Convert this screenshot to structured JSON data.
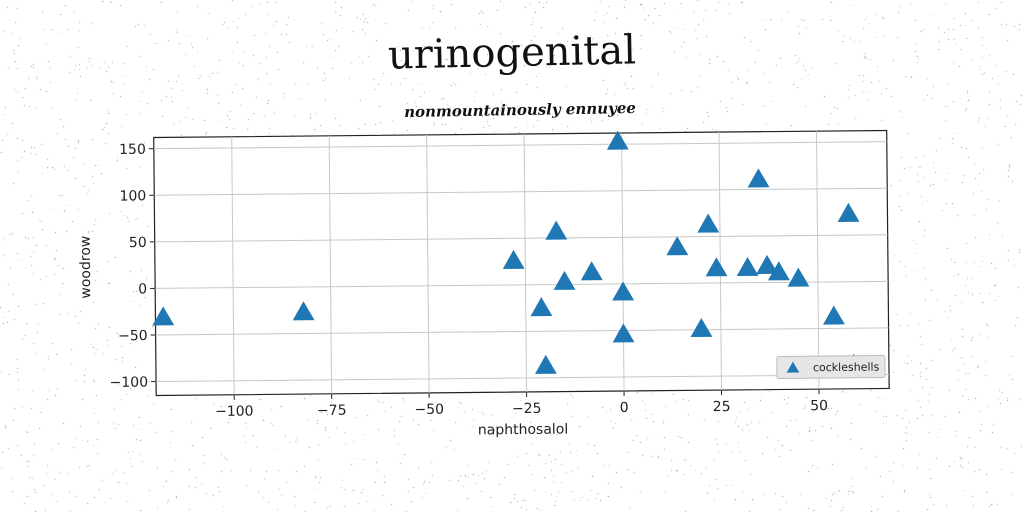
{
  "title": "urinogenital",
  "subtitle": "nonmountainously ennuyee",
  "chart_data": {
    "type": "scatter",
    "xlabel": "naphthosalol",
    "ylabel": "woodrow",
    "xlim": [
      -120,
      68
    ],
    "ylim": [
      -115,
      162
    ],
    "xticks": [
      -100,
      -75,
      -50,
      -25,
      0,
      25,
      50
    ],
    "yticks": [
      -100,
      -50,
      0,
      50,
      100,
      150
    ],
    "xtick_labels": [
      "−100",
      "−75",
      "−50",
      "−25",
      "0",
      "25",
      "50"
    ],
    "ytick_labels": [
      "−100",
      "−50",
      "0",
      "50",
      "100",
      "150"
    ],
    "grid": true,
    "legend_position": "bottom-right",
    "marker": "triangle",
    "color": "#1f77b4",
    "series": [
      {
        "name": "cockleshells",
        "x": [
          -118,
          -82,
          -28,
          -21,
          -17,
          -15,
          -20,
          -8,
          -1,
          0,
          0,
          14,
          20,
          22,
          24,
          32,
          35,
          37,
          40,
          45,
          54,
          58,
          59
        ],
        "y": [
          -32,
          -28,
          25,
          -26,
          56,
          2,
          -88,
          12,
          152,
          -10,
          -55,
          38,
          -50,
          62,
          15,
          15,
          110,
          17,
          10,
          3,
          -38,
          72,
          -90
        ]
      }
    ]
  }
}
